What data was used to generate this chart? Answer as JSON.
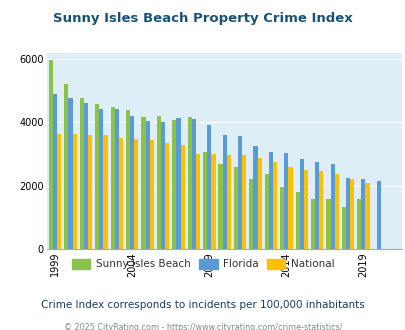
{
  "title": "Sunny Isles Beach Property Crime Index",
  "years": [
    1999,
    2000,
    2001,
    2002,
    2003,
    2004,
    2005,
    2006,
    2007,
    2008,
    2009,
    2010,
    2011,
    2012,
    2013,
    2014,
    2015,
    2016,
    2017,
    2018,
    2019,
    2020,
    2021
  ],
  "sunny_isles": [
    5980,
    5230,
    4780,
    4580,
    4480,
    4380,
    4180,
    4200,
    4090,
    4180,
    3080,
    2680,
    2590,
    2220,
    2380,
    1970,
    1800,
    1580,
    1580,
    1330,
    1590,
    0,
    0
  ],
  "florida": [
    4900,
    4760,
    4600,
    4430,
    4410,
    4190,
    4050,
    4020,
    4130,
    4120,
    3920,
    3590,
    3560,
    3260,
    3080,
    3040,
    2840,
    2760,
    2680,
    2260,
    2220,
    2150,
    0
  ],
  "national": [
    3640,
    3650,
    3620,
    3590,
    3500,
    3490,
    3440,
    3340,
    3290,
    3010,
    3010,
    2970,
    2970,
    2880,
    2740,
    2600,
    2490,
    2460,
    2380,
    2200,
    2100,
    0,
    0
  ],
  "bar_colors": {
    "sunny_isles": "#8bc34a",
    "florida": "#5b9bd5",
    "national": "#ffc000"
  },
  "plot_bg": "#deeef6",
  "ylim": [
    0,
    6200
  ],
  "yticks": [
    0,
    2000,
    4000,
    6000
  ],
  "xtick_labels": [
    "1999",
    "2004",
    "2009",
    "2014",
    "2019"
  ],
  "xtick_positions": [
    0,
    5,
    10,
    15,
    20
  ],
  "legend_labels": [
    "Sunny Isles Beach",
    "Florida",
    "National"
  ],
  "subtitle": "Crime Index corresponds to incidents per 100,000 inhabitants",
  "footer": "© 2025 CityRating.com - https://www.cityrating.com/crime-statistics/",
  "title_color": "#1a5276",
  "subtitle_color": "#1a3a5c",
  "footer_color": "#7f8c8d",
  "bar_width": 0.27
}
